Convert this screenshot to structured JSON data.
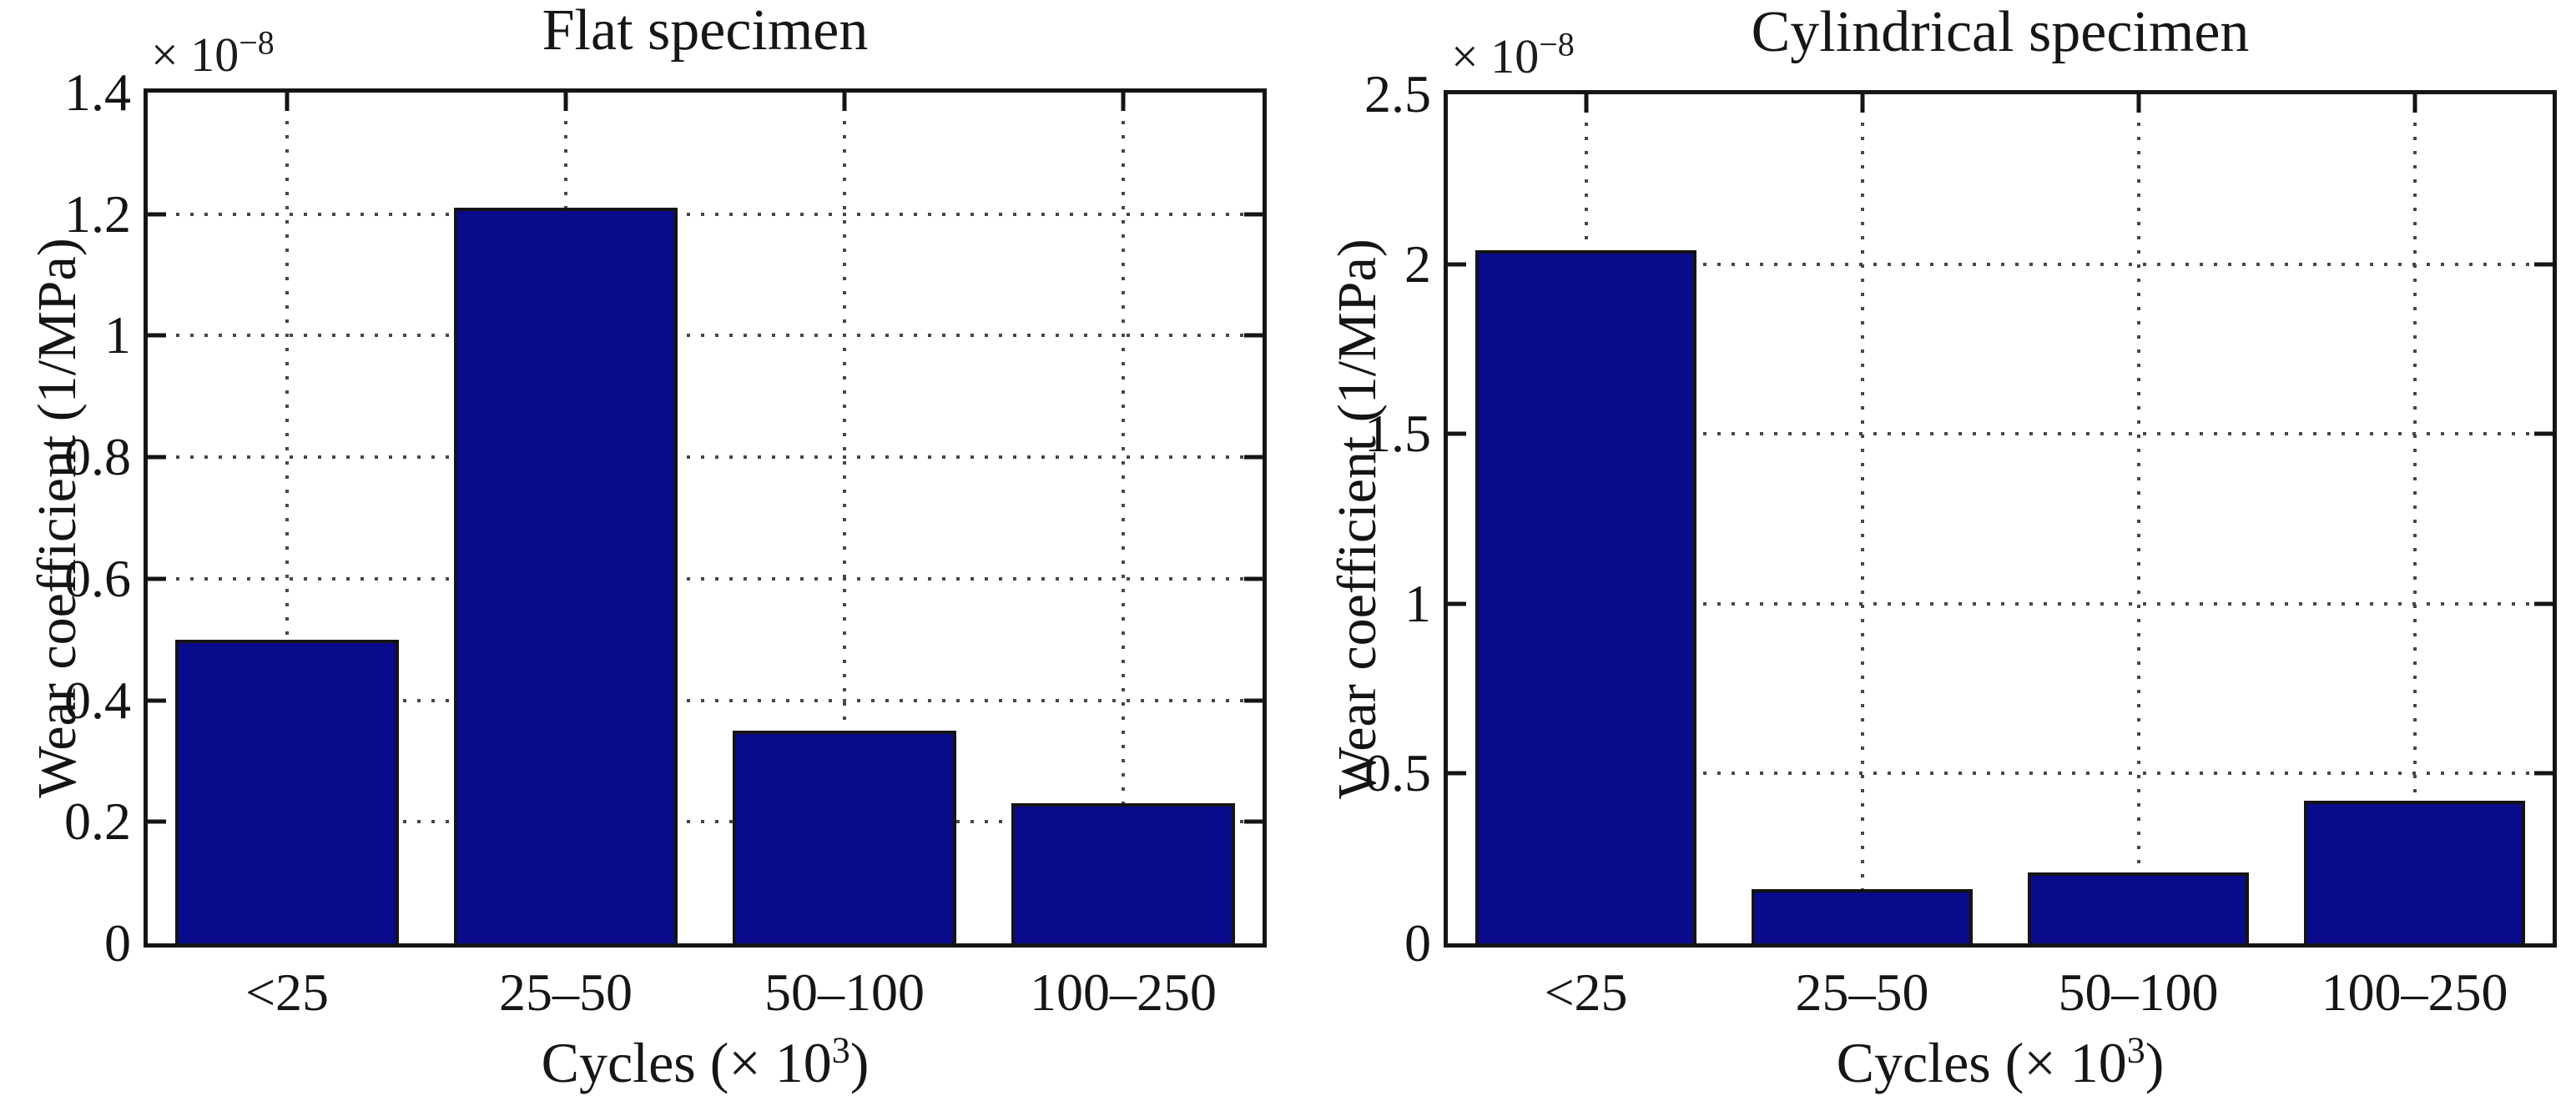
{
  "figure": {
    "charts": [
      {
        "title": "Flat specimen",
        "ylabel": "Wear coefficient (1/MPa)",
        "multiplier_prefix": "× 10",
        "multiplier_exp": "−8",
        "xlabel_prefix": "Cycles (× 10",
        "xlabel_sup": "3",
        "xlabel_suffix": ")",
        "yticks": [
          "1.4",
          "1.2",
          "1",
          "0.8",
          "0.6",
          "0.4",
          "0.2",
          "0"
        ],
        "xticks": [
          "<25",
          "25–50",
          "50–100",
          "100–250"
        ]
      },
      {
        "title": "Cylindrical specimen",
        "ylabel": "Wear coefficient (1/MPa)",
        "multiplier_prefix": "× 10",
        "multiplier_exp": "−8",
        "xlabel_prefix": "Cycles (× 10",
        "xlabel_sup": "3",
        "xlabel_suffix": ")",
        "yticks": [
          "2.5",
          "2",
          "1.5",
          "1",
          "0.5",
          "0"
        ],
        "xticks": [
          "<25",
          "25–50",
          "50–100",
          "100–250"
        ]
      }
    ]
  },
  "chart_data": [
    {
      "type": "bar",
      "title": "Flat specimen",
      "categories": [
        "<25",
        "25–50",
        "50–100",
        "100–250"
      ],
      "values": [
        0.5,
        1.21,
        0.35,
        0.23
      ],
      "value_scale": "×10⁻⁸",
      "unit": "1/MPa",
      "xlabel": "Cycles (× 10³)",
      "ylabel": "Wear coefficient (1/MPa)",
      "ylim": [
        0,
        1.4
      ],
      "ytick_step": 0.2,
      "grid": true,
      "legend": "none",
      "bar_color": "#0a0a8c"
    },
    {
      "type": "bar",
      "title": "Cylindrical specimen",
      "categories": [
        "<25",
        "25–50",
        "50–100",
        "100–250"
      ],
      "values": [
        2.04,
        0.16,
        0.21,
        0.42
      ],
      "value_scale": "×10⁻⁸",
      "unit": "1/MPa",
      "xlabel": "Cycles (× 10³)",
      "ylabel": "Wear coefficient (1/MPa)",
      "ylim": [
        0,
        2.5
      ],
      "ytick_step": 0.5,
      "grid": true,
      "legend": "none",
      "bar_color": "#0a0a8c"
    }
  ]
}
